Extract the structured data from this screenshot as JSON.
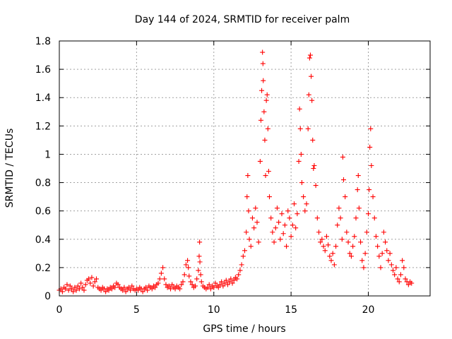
{
  "chart_data": {
    "type": "scatter",
    "title": "Day 144 of 2024, SRMTID for receiver palm",
    "xlabel": "GPS time / hours",
    "ylabel": "SRMTID / TECUs",
    "xlim": [
      0,
      24
    ],
    "ylim": [
      0,
      1.8
    ],
    "xticks": [
      0,
      5,
      10,
      15,
      20
    ],
    "yticks": [
      0,
      0.2,
      0.4,
      0.6,
      0.8,
      1,
      1.2,
      1.4,
      1.6,
      1.8
    ],
    "xtick_labels": [
      "0",
      "5",
      "10",
      "15",
      "20"
    ],
    "ytick_labels": [
      "0",
      "0.2",
      "0.4",
      "0.6",
      "0.8",
      "1",
      "1.2",
      "1.4",
      "1.6",
      "1.8"
    ],
    "grid": true,
    "marker": "+",
    "color": "#ff0000",
    "series": [
      {
        "name": "SRMTID",
        "points": [
          [
            0.0,
            0.04
          ],
          [
            0.1,
            0.05
          ],
          [
            0.2,
            0.03
          ],
          [
            0.3,
            0.06
          ],
          [
            0.4,
            0.05
          ],
          [
            0.5,
            0.08
          ],
          [
            0.6,
            0.04
          ],
          [
            0.7,
            0.07
          ],
          [
            0.8,
            0.05
          ],
          [
            0.9,
            0.03
          ],
          [
            1.0,
            0.06
          ],
          [
            1.1,
            0.04
          ],
          [
            1.2,
            0.07
          ],
          [
            1.3,
            0.05
          ],
          [
            1.4,
            0.09
          ],
          [
            1.5,
            0.06
          ],
          [
            1.6,
            0.04
          ],
          [
            1.7,
            0.08
          ],
          [
            1.8,
            0.11
          ],
          [
            1.9,
            0.12
          ],
          [
            2.0,
            0.09
          ],
          [
            2.1,
            0.13
          ],
          [
            2.2,
            0.07
          ],
          [
            2.3,
            0.1
          ],
          [
            2.4,
            0.12
          ],
          [
            2.5,
            0.06
          ],
          [
            2.6,
            0.05
          ],
          [
            2.7,
            0.04
          ],
          [
            2.8,
            0.06
          ],
          [
            2.9,
            0.05
          ],
          [
            3.0,
            0.03
          ],
          [
            3.1,
            0.05
          ],
          [
            3.2,
            0.04
          ],
          [
            3.3,
            0.06
          ],
          [
            3.4,
            0.05
          ],
          [
            3.5,
            0.07
          ],
          [
            3.6,
            0.06
          ],
          [
            3.7,
            0.09
          ],
          [
            3.8,
            0.08
          ],
          [
            3.9,
            0.06
          ],
          [
            4.0,
            0.05
          ],
          [
            4.1,
            0.04
          ],
          [
            4.2,
            0.06
          ],
          [
            4.3,
            0.03
          ],
          [
            4.4,
            0.05
          ],
          [
            4.5,
            0.06
          ],
          [
            4.6,
            0.04
          ],
          [
            4.7,
            0.07
          ],
          [
            4.8,
            0.05
          ],
          [
            4.9,
            0.04
          ],
          [
            5.0,
            0.05
          ],
          [
            5.1,
            0.04
          ],
          [
            5.2,
            0.06
          ],
          [
            5.3,
            0.05
          ],
          [
            5.4,
            0.03
          ],
          [
            5.5,
            0.05
          ],
          [
            5.6,
            0.06
          ],
          [
            5.7,
            0.04
          ],
          [
            5.8,
            0.07
          ],
          [
            5.9,
            0.06
          ],
          [
            6.0,
            0.05
          ],
          [
            6.1,
            0.07
          ],
          [
            6.2,
            0.06
          ],
          [
            6.3,
            0.08
          ],
          [
            6.4,
            0.09
          ],
          [
            6.5,
            0.12
          ],
          [
            6.6,
            0.16
          ],
          [
            6.7,
            0.2
          ],
          [
            6.8,
            0.12
          ],
          [
            6.9,
            0.08
          ],
          [
            7.0,
            0.06
          ],
          [
            7.1,
            0.07
          ],
          [
            7.2,
            0.05
          ],
          [
            7.3,
            0.08
          ],
          [
            7.4,
            0.06
          ],
          [
            7.5,
            0.05
          ],
          [
            7.6,
            0.07
          ],
          [
            7.7,
            0.06
          ],
          [
            7.8,
            0.05
          ],
          [
            7.9,
            0.08
          ],
          [
            8.0,
            0.1
          ],
          [
            8.1,
            0.15
          ],
          [
            8.2,
            0.22
          ],
          [
            8.3,
            0.25
          ],
          [
            8.35,
            0.2
          ],
          [
            8.4,
            0.14
          ],
          [
            8.5,
            0.1
          ],
          [
            8.6,
            0.08
          ],
          [
            8.7,
            0.06
          ],
          [
            8.8,
            0.07
          ],
          [
            8.9,
            0.12
          ],
          [
            9.0,
            0.18
          ],
          [
            9.05,
            0.28
          ],
          [
            9.08,
            0.38
          ],
          [
            9.1,
            0.24
          ],
          [
            9.15,
            0.15
          ],
          [
            9.2,
            0.1
          ],
          [
            9.3,
            0.07
          ],
          [
            9.4,
            0.06
          ],
          [
            9.5,
            0.05
          ],
          [
            9.6,
            0.06
          ],
          [
            9.7,
            0.08
          ],
          [
            9.8,
            0.05
          ],
          [
            9.9,
            0.07
          ],
          [
            10.0,
            0.06
          ],
          [
            10.1,
            0.09
          ],
          [
            10.2,
            0.07
          ],
          [
            10.3,
            0.06
          ],
          [
            10.4,
            0.08
          ],
          [
            10.5,
            0.1
          ],
          [
            10.6,
            0.07
          ],
          [
            10.7,
            0.09
          ],
          [
            10.8,
            0.11
          ],
          [
            10.9,
            0.08
          ],
          [
            11.0,
            0.1
          ],
          [
            11.1,
            0.12
          ],
          [
            11.2,
            0.09
          ],
          [
            11.3,
            0.11
          ],
          [
            11.4,
            0.13
          ],
          [
            11.5,
            0.12
          ],
          [
            11.6,
            0.15
          ],
          [
            11.7,
            0.18
          ],
          [
            11.8,
            0.22
          ],
          [
            11.9,
            0.28
          ],
          [
            12.0,
            0.32
          ],
          [
            12.1,
            0.45
          ],
          [
            12.15,
            0.7
          ],
          [
            12.2,
            0.85
          ],
          [
            12.25,
            0.6
          ],
          [
            12.3,
            0.4
          ],
          [
            12.4,
            0.35
          ],
          [
            12.5,
            0.55
          ],
          [
            12.6,
            0.48
          ],
          [
            12.7,
            0.62
          ],
          [
            12.8,
            0.52
          ],
          [
            12.9,
            0.38
          ],
          [
            13.0,
            0.95
          ],
          [
            13.05,
            1.24
          ],
          [
            13.1,
            1.45
          ],
          [
            13.15,
            1.72
          ],
          [
            13.18,
            1.64
          ],
          [
            13.2,
            1.52
          ],
          [
            13.25,
            1.3
          ],
          [
            13.3,
            1.1
          ],
          [
            13.35,
            0.85
          ],
          [
            13.4,
            1.38
          ],
          [
            13.45,
            1.42
          ],
          [
            13.5,
            1.18
          ],
          [
            13.55,
            0.88
          ],
          [
            13.6,
            0.7
          ],
          [
            13.7,
            0.55
          ],
          [
            13.8,
            0.45
          ],
          [
            13.9,
            0.38
          ],
          [
            14.0,
            0.48
          ],
          [
            14.1,
            0.62
          ],
          [
            14.2,
            0.52
          ],
          [
            14.3,
            0.4
          ],
          [
            14.4,
            0.58
          ],
          [
            14.5,
            0.44
          ],
          [
            14.6,
            0.5
          ],
          [
            14.7,
            0.35
          ],
          [
            14.8,
            0.6
          ],
          [
            14.9,
            0.55
          ],
          [
            15.0,
            0.42
          ],
          [
            15.1,
            0.5
          ],
          [
            15.2,
            0.65
          ],
          [
            15.3,
            0.48
          ],
          [
            15.4,
            0.58
          ],
          [
            15.5,
            0.95
          ],
          [
            15.55,
            1.32
          ],
          [
            15.6,
            1.18
          ],
          [
            15.65,
            1.0
          ],
          [
            15.7,
            0.8
          ],
          [
            15.8,
            0.7
          ],
          [
            15.9,
            0.6
          ],
          [
            16.0,
            0.65
          ],
          [
            16.1,
            1.18
          ],
          [
            16.15,
            1.42
          ],
          [
            16.2,
            1.68
          ],
          [
            16.25,
            1.7
          ],
          [
            16.3,
            1.55
          ],
          [
            16.35,
            1.38
          ],
          [
            16.4,
            1.1
          ],
          [
            16.45,
            0.9
          ],
          [
            16.5,
            0.92
          ],
          [
            16.6,
            0.78
          ],
          [
            16.7,
            0.55
          ],
          [
            16.8,
            0.45
          ],
          [
            16.9,
            0.38
          ],
          [
            17.0,
            0.4
          ],
          [
            17.1,
            0.35
          ],
          [
            17.2,
            0.32
          ],
          [
            17.3,
            0.42
          ],
          [
            17.4,
            0.36
          ],
          [
            17.5,
            0.28
          ],
          [
            17.6,
            0.25
          ],
          [
            17.7,
            0.3
          ],
          [
            17.8,
            0.22
          ],
          [
            17.9,
            0.35
          ],
          [
            18.0,
            0.5
          ],
          [
            18.1,
            0.62
          ],
          [
            18.2,
            0.55
          ],
          [
            18.3,
            0.4
          ],
          [
            18.35,
            0.98
          ],
          [
            18.4,
            0.82
          ],
          [
            18.5,
            0.7
          ],
          [
            18.6,
            0.45
          ],
          [
            18.7,
            0.38
          ],
          [
            18.8,
            0.3
          ],
          [
            18.9,
            0.28
          ],
          [
            19.0,
            0.35
          ],
          [
            19.1,
            0.42
          ],
          [
            19.2,
            0.55
          ],
          [
            19.3,
            0.75
          ],
          [
            19.35,
            0.85
          ],
          [
            19.4,
            0.62
          ],
          [
            19.5,
            0.38
          ],
          [
            19.6,
            0.25
          ],
          [
            19.7,
            0.2
          ],
          [
            19.8,
            0.3
          ],
          [
            19.9,
            0.45
          ],
          [
            20.0,
            0.58
          ],
          [
            20.05,
            0.75
          ],
          [
            20.1,
            1.05
          ],
          [
            20.15,
            1.18
          ],
          [
            20.2,
            0.92
          ],
          [
            20.3,
            0.7
          ],
          [
            20.4,
            0.55
          ],
          [
            20.5,
            0.42
          ],
          [
            20.6,
            0.35
          ],
          [
            20.7,
            0.28
          ],
          [
            20.8,
            0.2
          ],
          [
            20.9,
            0.3
          ],
          [
            21.0,
            0.45
          ],
          [
            21.1,
            0.38
          ],
          [
            21.2,
            0.32
          ],
          [
            21.3,
            0.25
          ],
          [
            21.4,
            0.3
          ],
          [
            21.5,
            0.22
          ],
          [
            21.6,
            0.18
          ],
          [
            21.7,
            0.15
          ],
          [
            21.8,
            0.2
          ],
          [
            21.9,
            0.12
          ],
          [
            22.0,
            0.1
          ],
          [
            22.1,
            0.15
          ],
          [
            22.2,
            0.25
          ],
          [
            22.3,
            0.2
          ],
          [
            22.4,
            0.12
          ],
          [
            22.5,
            0.1
          ],
          [
            22.6,
            0.08
          ],
          [
            22.7,
            0.1
          ],
          [
            22.8,
            0.09
          ]
        ]
      }
    ]
  }
}
